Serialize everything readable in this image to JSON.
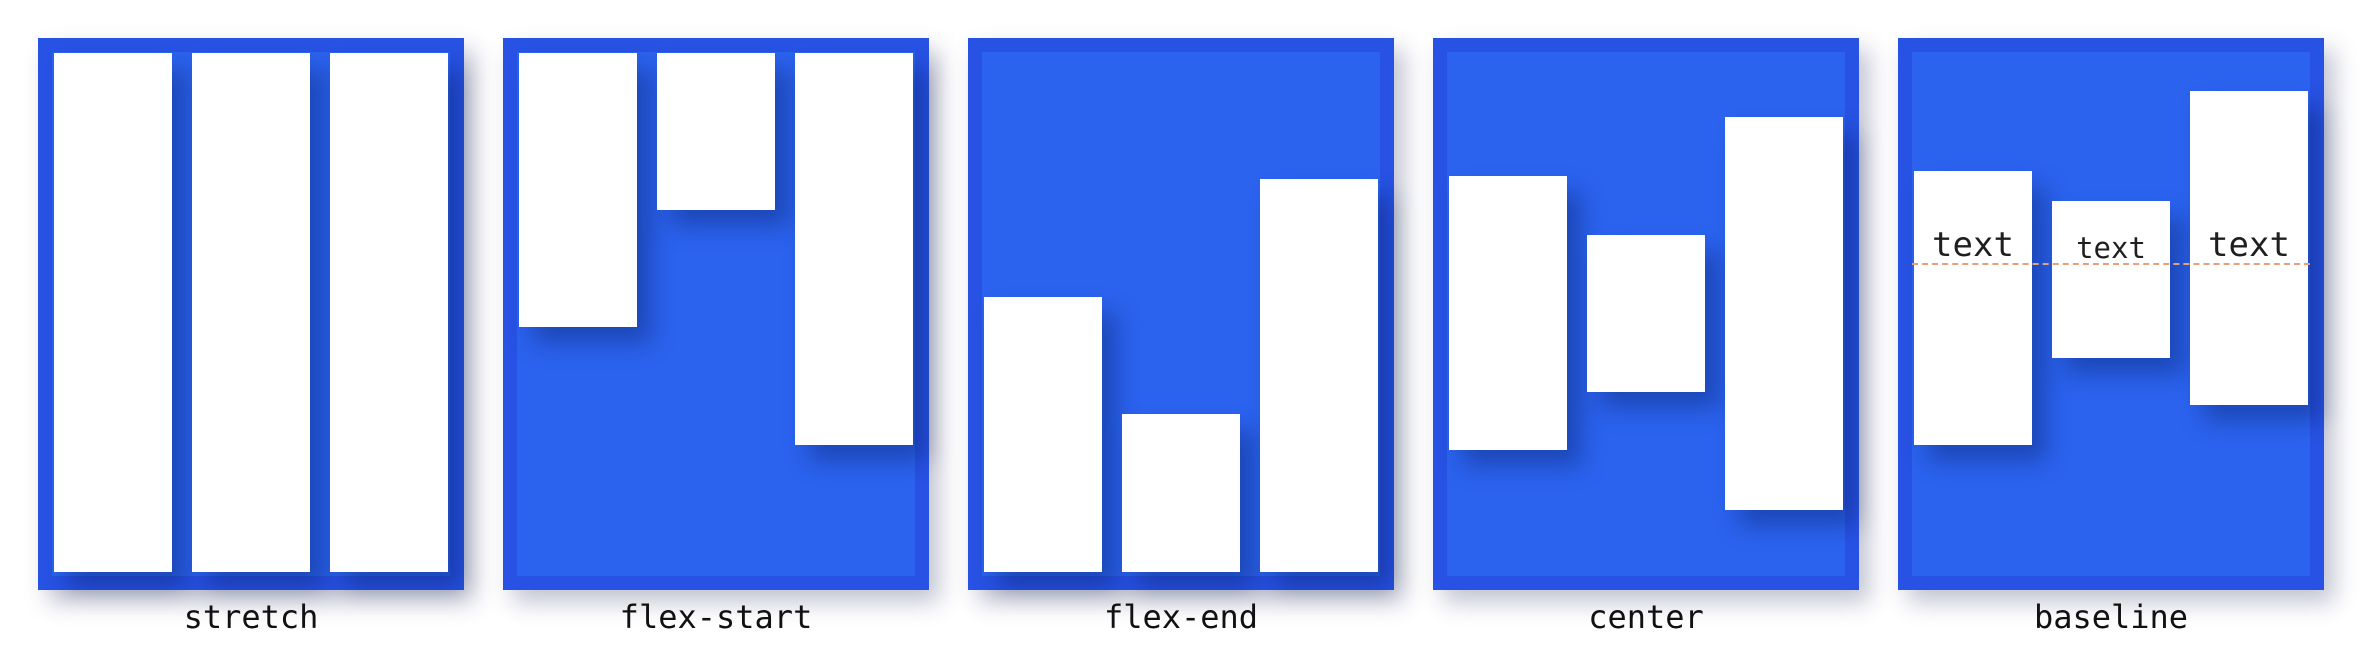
{
  "panels": [
    {
      "caption": "stretch"
    },
    {
      "caption": "flex-start"
    },
    {
      "caption": "flex-end"
    },
    {
      "caption": "center"
    },
    {
      "caption": "baseline",
      "box_labels": [
        "text",
        "text",
        "text"
      ]
    }
  ],
  "colors": {
    "container_fill": "#2b63ef",
    "container_border": "#2752e3",
    "item_fill": "#ffffff",
    "baseline_guide": "#e8a07a"
  }
}
